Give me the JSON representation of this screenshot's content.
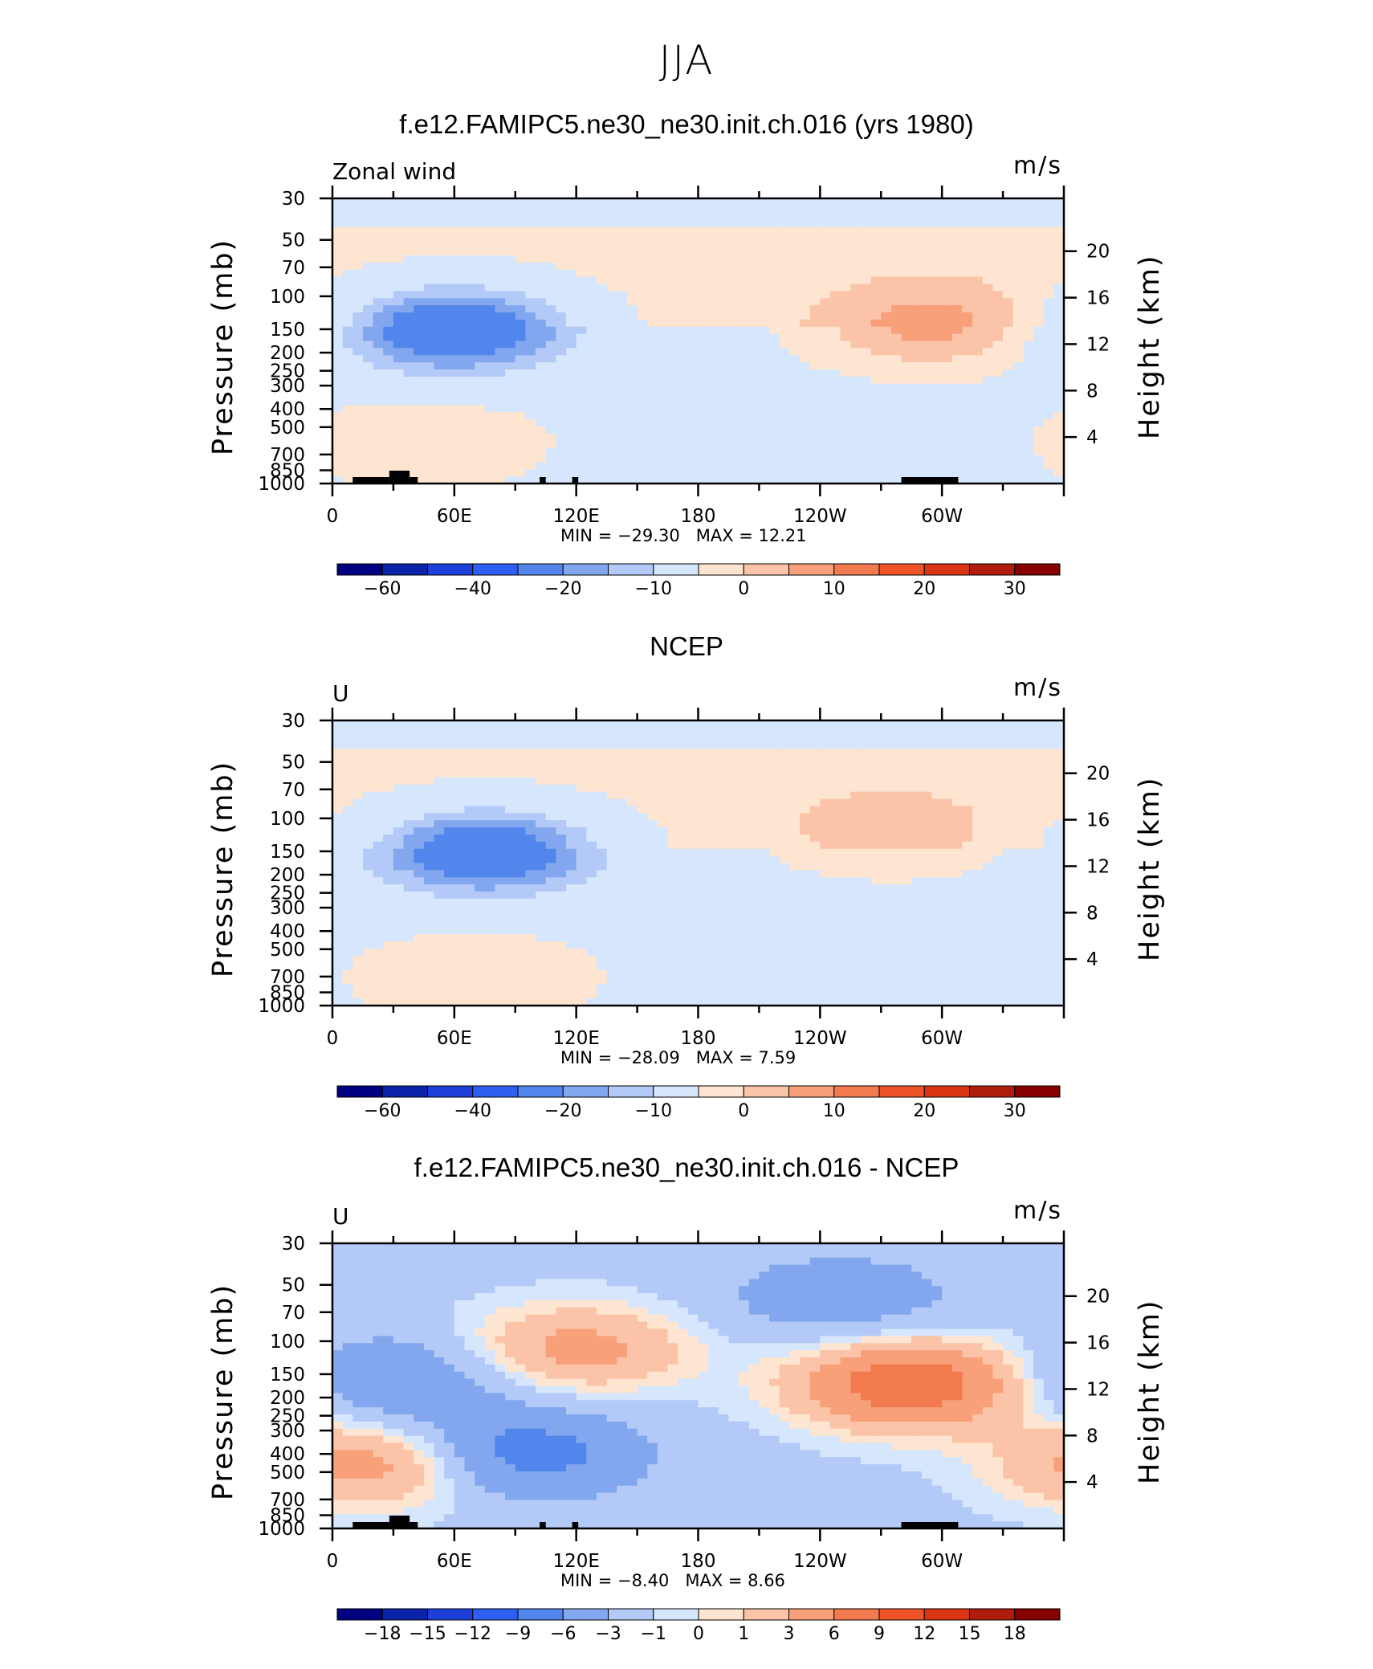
{
  "page_title": "JJA",
  "units": "m/s",
  "left_axis_title": "Pressure (mb)",
  "right_axis_title": "Height (km)",
  "pressure_ticks": [
    "30",
    "50",
    "70",
    "100",
    "150",
    "200",
    "250",
    "300",
    "400",
    "500",
    "700",
    "850",
    "1000"
  ],
  "height_ticks": [
    "20",
    "16",
    "12",
    "8",
    "4"
  ],
  "lon_ticks": [
    "0",
    "60E",
    "120E",
    "180",
    "120W",
    "60W"
  ],
  "colors": {
    "neg": [
      "#000080",
      "#0a23a8",
      "#1b3fd8",
      "#2e5ff0",
      "#5386ec",
      "#82a7ef",
      "#b3c9f7",
      "#d6e6fc"
    ],
    "pos": [
      "#fde5d1",
      "#fbc4a8",
      "#f7a07a",
      "#f27a4f",
      "#ee5227",
      "#d93414",
      "#b01d0c",
      "#860000"
    ]
  },
  "chart_data": [
    {
      "type": "heatmap",
      "title": "f.e12.FAMIPC5.ne30_ne30.init.ch.016 (yrs 1980)",
      "variable": "Zonal wind",
      "units": "m/s",
      "min_label": "MIN = −29.30",
      "max_label": "MAX = 12.21",
      "min": -29.3,
      "max": 12.21,
      "colorbar_labels": [
        "−60",
        "−40",
        "−20",
        "−10",
        "0",
        "10",
        "20",
        "30"
      ],
      "features": [
        {
          "lon": 60,
          "pressure": 150,
          "value": -29.3
        },
        {
          "lon": 295,
          "pressure": 140,
          "value": 12.2
        },
        {
          "lon": 45,
          "pressure": 600,
          "value": 5
        },
        {
          "lon": 255,
          "pressure": 780,
          "value": -5
        }
      ]
    },
    {
      "type": "heatmap",
      "title": "NCEP",
      "variable": "U",
      "units": "m/s",
      "min_label": "MIN = −28.09",
      "max_label": "MAX = 7.59",
      "min": -28.09,
      "max": 7.59,
      "colorbar_labels": [
        "−60",
        "−40",
        "−20",
        "−10",
        "0",
        "10",
        "20",
        "30"
      ],
      "features": [
        {
          "lon": 75,
          "pressure": 150,
          "value": -28.1
        },
        {
          "lon": 275,
          "pressure": 110,
          "value": 7.6
        },
        {
          "lon": 70,
          "pressure": 700,
          "value": 5
        }
      ]
    },
    {
      "type": "heatmap",
      "title": "f.e12.FAMIPC5.ne30_ne30.init.ch.016 - NCEP",
      "variable": "U",
      "units": "m/s",
      "min_label": "MIN = −8.40",
      "max_label": "MAX = 8.66",
      "min": -8.4,
      "max": 8.66,
      "colorbar_labels": [
        "−18",
        "−15",
        "−12",
        "−9",
        "−6",
        "−3",
        "−1",
        "0",
        "1",
        "3",
        "6",
        "9",
        "12",
        "15",
        "18"
      ],
      "features": [
        {
          "lon": 30,
          "pressure": 160,
          "value": -6
        },
        {
          "lon": 90,
          "pressure": 400,
          "value": -8.4
        },
        {
          "lon": 285,
          "pressure": 170,
          "value": 8.7
        },
        {
          "lon": 25,
          "pressure": 450,
          "value": 5
        },
        {
          "lon": 250,
          "pressure": 60,
          "value": -5
        },
        {
          "lon": 120,
          "pressure": 110,
          "value": 4
        }
      ]
    }
  ]
}
